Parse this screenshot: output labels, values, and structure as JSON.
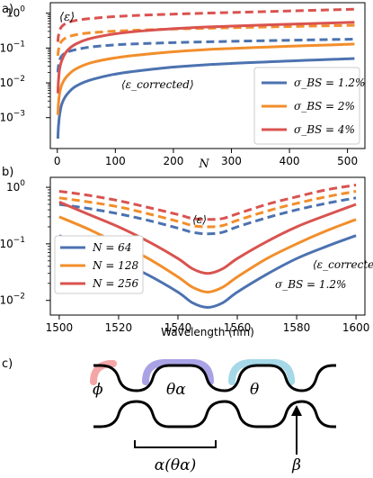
{
  "figure": {
    "panel_labels": [
      "a)",
      "b)",
      "c)"
    ]
  },
  "chart_data": [
    {
      "type": "line",
      "panel": "a)",
      "xlabel": "N",
      "ylabel": "",
      "yscale": "log",
      "xlim": [
        -12,
        530
      ],
      "ylim": [
        0.00013,
        2.0
      ],
      "xticks": [
        "0",
        "100",
        "200",
        "300",
        "400",
        "500"
      ],
      "yticks": [
        "10^-3",
        "10^-2",
        "10^-1",
        "10^0"
      ],
      "grid": false,
      "legend_position": "lower-right",
      "annotations": {
        "avg_error": "⟨ε⟩",
        "corrected": "⟨ε_corrected⟩"
      },
      "series": [
        {
          "name": "σ_BS = 1.2%",
          "color": "#4c72b0",
          "x": [
            1,
            2,
            4,
            8,
            16,
            32,
            64,
            128,
            256,
            512
          ],
          "corrected": [
            0.00025,
            0.00055,
            0.0012,
            0.0025,
            0.0045,
            0.008,
            0.013,
            0.021,
            0.033,
            0.05
          ],
          "uncorrected": [
            0.02,
            0.03,
            0.045,
            0.06,
            0.075,
            0.09,
            0.11,
            0.13,
            0.15,
            0.18
          ]
        },
        {
          "name": "σ_BS = 2%",
          "color": "#f28e2b",
          "x": [
            1,
            2,
            4,
            8,
            16,
            32,
            64,
            128,
            256,
            512
          ],
          "corrected": [
            0.0012,
            0.0025,
            0.005,
            0.009,
            0.015,
            0.025,
            0.04,
            0.06,
            0.09,
            0.13
          ],
          "uncorrected": [
            0.06,
            0.085,
            0.12,
            0.16,
            0.2,
            0.24,
            0.28,
            0.32,
            0.37,
            0.45
          ]
        },
        {
          "name": "σ_BS = 4%",
          "color": "#d9534f",
          "x": [
            1,
            2,
            4,
            8,
            16,
            32,
            64,
            128,
            256,
            512
          ],
          "corrected": [
            0.005,
            0.011,
            0.025,
            0.045,
            0.08,
            0.13,
            0.2,
            0.29,
            0.4,
            0.55
          ],
          "uncorrected": [
            0.15,
            0.22,
            0.32,
            0.42,
            0.52,
            0.62,
            0.72,
            0.85,
            1.0,
            1.3
          ]
        }
      ]
    },
    {
      "type": "line",
      "panel": "b)",
      "xlabel": "Wavelength (nm)",
      "ylabel": "",
      "yscale": "log",
      "xlim": [
        1497,
        1603
      ],
      "ylim": [
        0.0055,
        1.5
      ],
      "xticks": [
        "1500",
        "1520",
        "1540",
        "1560",
        "1580",
        "1600"
      ],
      "yticks": [
        "10^-2",
        "10^-1",
        "10^0"
      ],
      "grid": false,
      "legend_position": "lower-left",
      "annotations": {
        "avg_error": "⟨ε⟩",
        "corrected": "⟨ε_corrected⟩",
        "sigma": "σ_BS = 1.2%"
      },
      "series": [
        {
          "name": "N = 64",
          "color": "#4c72b0",
          "x": [
            1500,
            1510,
            1520,
            1530,
            1540,
            1545,
            1550,
            1555,
            1560,
            1570,
            1580,
            1590,
            1600
          ],
          "corrected": [
            0.14,
            0.085,
            0.05,
            0.028,
            0.014,
            0.009,
            0.0075,
            0.009,
            0.014,
            0.029,
            0.055,
            0.09,
            0.14
          ],
          "uncorrected": [
            0.5,
            0.42,
            0.34,
            0.26,
            0.19,
            0.16,
            0.15,
            0.16,
            0.2,
            0.29,
            0.4,
            0.52,
            0.65
          ]
        },
        {
          "name": "N = 128",
          "color": "#f28e2b",
          "x": [
            1500,
            1510,
            1520,
            1530,
            1540,
            1545,
            1550,
            1555,
            1560,
            1570,
            1580,
            1590,
            1600
          ],
          "corrected": [
            0.3,
            0.18,
            0.1,
            0.055,
            0.026,
            0.017,
            0.014,
            0.017,
            0.026,
            0.055,
            0.1,
            0.17,
            0.27
          ],
          "uncorrected": [
            0.65,
            0.55,
            0.45,
            0.34,
            0.25,
            0.21,
            0.2,
            0.21,
            0.26,
            0.38,
            0.52,
            0.68,
            0.85
          ]
        },
        {
          "name": "N = 256",
          "color": "#d9534f",
          "x": [
            1500,
            1510,
            1520,
            1530,
            1540,
            1545,
            1550,
            1555,
            1560,
            1570,
            1580,
            1590,
            1600
          ],
          "corrected": [
            0.55,
            0.33,
            0.2,
            0.11,
            0.055,
            0.036,
            0.03,
            0.036,
            0.055,
            0.11,
            0.2,
            0.32,
            0.5
          ],
          "uncorrected": [
            0.85,
            0.72,
            0.58,
            0.44,
            0.33,
            0.28,
            0.27,
            0.28,
            0.34,
            0.5,
            0.68,
            0.9,
            1.1
          ]
        }
      ]
    }
  ],
  "diagram": {
    "labels": {
      "phi": "ϕ",
      "theta_a": "θα",
      "theta": "θ",
      "alpha": "α(θα)",
      "beta": "β"
    },
    "colors": {
      "phi": "#f4a6a6",
      "theta_a": "#a9a3e6",
      "theta": "#a6d8e8"
    }
  }
}
